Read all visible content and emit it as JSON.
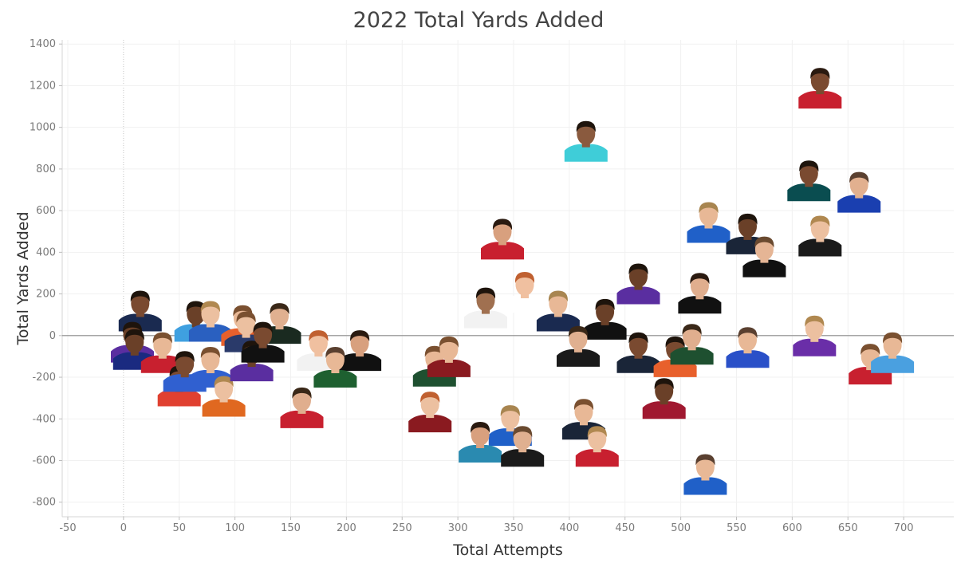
{
  "chart_data": {
    "type": "scatter",
    "title": "2022 Total Yards Added",
    "xlabel": "Total Attempts",
    "ylabel": "Total Yards Added",
    "xlim": [
      -55,
      745
    ],
    "ylim": [
      -870,
      1420
    ],
    "x_ticks": [
      -50,
      0,
      50,
      100,
      150,
      200,
      250,
      300,
      350,
      400,
      450,
      500,
      550,
      600,
      650,
      700
    ],
    "y_ticks": [
      -800,
      -600,
      -400,
      -200,
      0,
      200,
      400,
      600,
      800,
      1000,
      1200,
      1400
    ],
    "grid": true,
    "marker": "player headshot photo",
    "points": [
      {
        "x": 625,
        "y": 1190,
        "jersey": "#c8202f",
        "skin": "#7a4a30",
        "hair": "#2a1a10"
      },
      {
        "x": 415,
        "y": 935,
        "jersey": "#3fcdd8",
        "skin": "#8a5a3e",
        "hair": "#1e140c"
      },
      {
        "x": 615,
        "y": 745,
        "jersey": "#0a4d50",
        "skin": "#7a4a30",
        "hair": "#1e140c"
      },
      {
        "x": 660,
        "y": 690,
        "jersey": "#1a3fb0",
        "skin": "#e2b08f",
        "hair": "#5a4030"
      },
      {
        "x": 525,
        "y": 545,
        "jersey": "#2060c8",
        "skin": "#e8b896",
        "hair": "#a88550"
      },
      {
        "x": 560,
        "y": 490,
        "jersey": "#1a2538",
        "skin": "#6a4028",
        "hair": "#1e140c"
      },
      {
        "x": 575,
        "y": 380,
        "jersey": "#111111",
        "skin": "#e5b595",
        "hair": "#6a4a30"
      },
      {
        "x": 625,
        "y": 480,
        "jersey": "#1a1a1a",
        "skin": "#ecc0a0",
        "hair": "#b08850"
      },
      {
        "x": 340,
        "y": 465,
        "jersey": "#c8202f",
        "skin": "#d8a07e",
        "hair": "#2a1a10"
      },
      {
        "x": 462,
        "y": 250,
        "jersey": "#5a2ea0",
        "skin": "#6a4028",
        "hair": "#1e140c"
      },
      {
        "x": 517,
        "y": 205,
        "jersey": "#111111",
        "skin": "#e0ae8e",
        "hair": "#2a1a10"
      },
      {
        "x": 360,
        "y": 210,
        "jersey": "#ffffff",
        "skin": "#f0c0a0",
        "hair": "#c06030"
      },
      {
        "x": 325,
        "y": 135,
        "jersey": "#f2f2f2",
        "skin": "#a07050",
        "hair": "#1e140c"
      },
      {
        "x": 390,
        "y": 120,
        "jersey": "#1a2a50",
        "skin": "#e8b896",
        "hair": "#a88550"
      },
      {
        "x": 432,
        "y": 80,
        "jersey": "#111111",
        "skin": "#6a4028",
        "hair": "#1e140c"
      },
      {
        "x": 408,
        "y": -50,
        "jersey": "#1a1a1a",
        "skin": "#e0b090",
        "hair": "#3a2818"
      },
      {
        "x": 462,
        "y": -80,
        "jersey": "#1a2538",
        "skin": "#7a4a30",
        "hair": "#1e140c"
      },
      {
        "x": 495,
        "y": -100,
        "jersey": "#e8602c",
        "skin": "#7a4a30",
        "hair": "#1e140c"
      },
      {
        "x": 510,
        "y": -40,
        "jersey": "#1e5030",
        "skin": "#e0ae8e",
        "hair": "#3a2818"
      },
      {
        "x": 560,
        "y": -55,
        "jersey": "#2a50c8",
        "skin": "#e8b896",
        "hair": "#5a4030"
      },
      {
        "x": 620,
        "y": 0,
        "jersey": "#6a2ea8",
        "skin": "#ecc0a0",
        "hair": "#b08850"
      },
      {
        "x": 670,
        "y": -135,
        "jersey": "#c8202f",
        "skin": "#e8b896",
        "hair": "#7a5030"
      },
      {
        "x": 690,
        "y": -80,
        "jersey": "#4aa0e0",
        "skin": "#e8b896",
        "hair": "#7a5030"
      },
      {
        "x": 485,
        "y": -300,
        "jersey": "#a01830",
        "skin": "#6a4028",
        "hair": "#1e140c"
      },
      {
        "x": 522,
        "y": -665,
        "jersey": "#2060c8",
        "skin": "#e8b896",
        "hair": "#5a4030"
      },
      {
        "x": 279,
        "y": -145,
        "jersey": "#1e5030",
        "skin": "#e8b896",
        "hair": "#7a5030"
      },
      {
        "x": 292,
        "y": -100,
        "jersey": "#8a1a20",
        "skin": "#e8b896",
        "hair": "#7a5030"
      },
      {
        "x": 275,
        "y": -365,
        "jersey": "#8a1a20",
        "skin": "#ecc0a0",
        "hair": "#c06030"
      },
      {
        "x": 347,
        "y": -430,
        "jersey": "#2060c8",
        "skin": "#ecc0a0",
        "hair": "#a88550"
      },
      {
        "x": 320,
        "y": -510,
        "jersey": "#2a8ab0",
        "skin": "#d8a07e",
        "hair": "#2a1a10"
      },
      {
        "x": 358,
        "y": -530,
        "jersey": "#1a1a1a",
        "skin": "#e0b090",
        "hair": "#6a4a30"
      },
      {
        "x": 413,
        "y": -400,
        "jersey": "#1a2538",
        "skin": "#e8b896",
        "hair": "#7a5030"
      },
      {
        "x": 425,
        "y": -530,
        "jersey": "#c8202f",
        "skin": "#ecc0a0",
        "hair": "#b08850"
      },
      {
        "x": 15,
        "y": 120,
        "jersey": "#1a2a50",
        "skin": "#7a4a30",
        "hair": "#1e140c"
      },
      {
        "x": 65,
        "y": 70,
        "jersey": "#3fa0e0",
        "skin": "#6a4028",
        "hair": "#1e140c"
      },
      {
        "x": 78,
        "y": 70,
        "jersey": "#2a60c0",
        "skin": "#ecc0a0",
        "hair": "#b08850"
      },
      {
        "x": 107,
        "y": 50,
        "jersey": "#e8602c",
        "skin": "#e8b896",
        "hair": "#7a5030"
      },
      {
        "x": 140,
        "y": 60,
        "jersey": "#1a2a20",
        "skin": "#e0b090",
        "hair": "#3a2818"
      },
      {
        "x": 110,
        "y": 20,
        "jersey": "#2a3a6a",
        "skin": "#ecc0a0",
        "hair": "#7a5030"
      },
      {
        "x": 8,
        "y": -30,
        "jersey": "#5a2ea0",
        "skin": "#6a4028",
        "hair": "#1e140c"
      },
      {
        "x": 10,
        "y": -65,
        "jersey": "#1a2a80",
        "skin": "#6a4028",
        "hair": "#1e140c"
      },
      {
        "x": 35,
        "y": -80,
        "jersey": "#c8202f",
        "skin": "#e8b896",
        "hair": "#7a5030"
      },
      {
        "x": 50,
        "y": -240,
        "jersey": "#e04030",
        "skin": "#7a4a30",
        "hair": "#1e140c"
      },
      {
        "x": 55,
        "y": -170,
        "jersey": "#3060d0",
        "skin": "#7a4a30",
        "hair": "#1e140c"
      },
      {
        "x": 78,
        "y": -150,
        "jersey": "#3060d0",
        "skin": "#e8b896",
        "hair": "#7a5030"
      },
      {
        "x": 90,
        "y": -290,
        "jersey": "#e06820",
        "skin": "#ecc0a0",
        "hair": "#b08850"
      },
      {
        "x": 115,
        "y": -120,
        "jersey": "#5a2ea0",
        "skin": "#6a4028",
        "hair": "#1e140c"
      },
      {
        "x": 125,
        "y": -30,
        "jersey": "#111111",
        "skin": "#7a4a30",
        "hair": "#1e140c"
      },
      {
        "x": 175,
        "y": -70,
        "jersey": "#f2f2f2",
        "skin": "#f0c0a0",
        "hair": "#c06030"
      },
      {
        "x": 212,
        "y": -70,
        "jersey": "#111111",
        "skin": "#d8a07e",
        "hair": "#2a1a10"
      },
      {
        "x": 190,
        "y": -150,
        "jersey": "#1e6030",
        "skin": "#e8b896",
        "hair": "#5a4030"
      },
      {
        "x": 160,
        "y": -345,
        "jersey": "#c8202f",
        "skin": "#e0ae8e",
        "hair": "#3a2818"
      }
    ]
  }
}
